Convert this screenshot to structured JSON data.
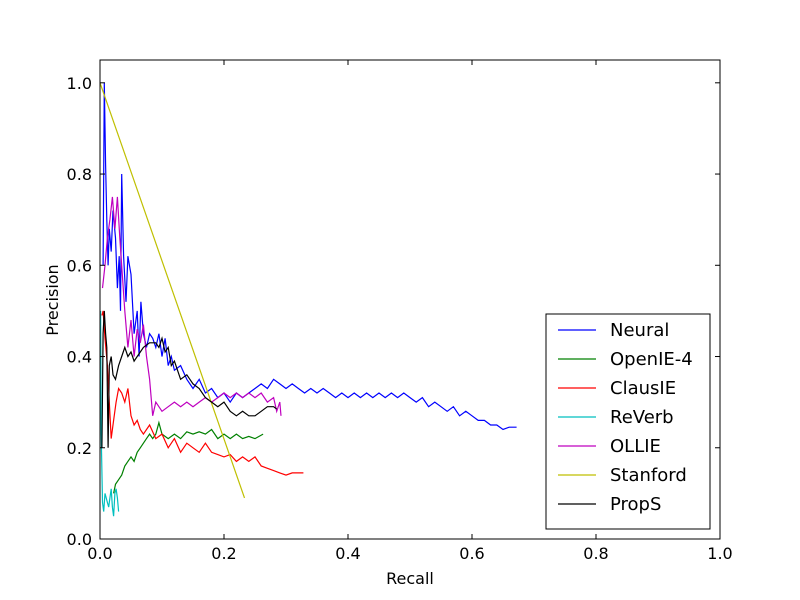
{
  "chart_data": {
    "type": "line",
    "title": "",
    "xlabel": "Recall",
    "ylabel": "Precision",
    "xlim": [
      0.0,
      1.0
    ],
    "ylim": [
      0.0,
      1.05
    ],
    "xticks": [
      "0.0",
      "0.2",
      "0.4",
      "0.6",
      "0.8",
      "1.0"
    ],
    "yticks": [
      "0.0",
      "0.2",
      "0.4",
      "0.6",
      "0.8",
      "1.0"
    ],
    "grid": false,
    "legend_position": "bottom-right",
    "series": [
      {
        "name": "Neural",
        "color": "#0000ff",
        "points": [
          [
            0.005,
            0.6
          ],
          [
            0.007,
            1.0
          ],
          [
            0.009,
            0.82
          ],
          [
            0.011,
            0.7
          ],
          [
            0.013,
            0.6
          ],
          [
            0.015,
            0.68
          ],
          [
            0.018,
            0.63
          ],
          [
            0.021,
            0.72
          ],
          [
            0.025,
            0.66
          ],
          [
            0.028,
            0.55
          ],
          [
            0.031,
            0.62
          ],
          [
            0.033,
            0.5
          ],
          [
            0.035,
            0.8
          ],
          [
            0.038,
            0.62
          ],
          [
            0.042,
            0.52
          ],
          [
            0.045,
            0.62
          ],
          [
            0.05,
            0.58
          ],
          [
            0.055,
            0.45
          ],
          [
            0.06,
            0.5
          ],
          [
            0.063,
            0.4
          ],
          [
            0.066,
            0.52
          ],
          [
            0.07,
            0.45
          ],
          [
            0.075,
            0.42
          ],
          [
            0.08,
            0.45
          ],
          [
            0.085,
            0.44
          ],
          [
            0.09,
            0.42
          ],
          [
            0.095,
            0.45
          ],
          [
            0.1,
            0.4
          ],
          [
            0.105,
            0.44
          ],
          [
            0.11,
            0.38
          ],
          [
            0.115,
            0.4
          ],
          [
            0.12,
            0.37
          ],
          [
            0.13,
            0.38
          ],
          [
            0.14,
            0.35
          ],
          [
            0.15,
            0.33
          ],
          [
            0.16,
            0.35
          ],
          [
            0.17,
            0.32
          ],
          [
            0.18,
            0.33
          ],
          [
            0.19,
            0.31
          ],
          [
            0.2,
            0.32
          ],
          [
            0.21,
            0.3
          ],
          [
            0.22,
            0.32
          ],
          [
            0.23,
            0.31
          ],
          [
            0.24,
            0.32
          ],
          [
            0.25,
            0.33
          ],
          [
            0.26,
            0.34
          ],
          [
            0.27,
            0.33
          ],
          [
            0.28,
            0.35
          ],
          [
            0.29,
            0.34
          ],
          [
            0.3,
            0.33
          ],
          [
            0.31,
            0.34
          ],
          [
            0.32,
            0.33
          ],
          [
            0.33,
            0.32
          ],
          [
            0.34,
            0.33
          ],
          [
            0.35,
            0.32
          ],
          [
            0.36,
            0.33
          ],
          [
            0.37,
            0.32
          ],
          [
            0.38,
            0.31
          ],
          [
            0.39,
            0.32
          ],
          [
            0.4,
            0.31
          ],
          [
            0.41,
            0.32
          ],
          [
            0.42,
            0.31
          ],
          [
            0.43,
            0.32
          ],
          [
            0.44,
            0.31
          ],
          [
            0.45,
            0.32
          ],
          [
            0.46,
            0.31
          ],
          [
            0.47,
            0.32
          ],
          [
            0.48,
            0.31
          ],
          [
            0.49,
            0.32
          ],
          [
            0.5,
            0.31
          ],
          [
            0.51,
            0.3
          ],
          [
            0.52,
            0.31
          ],
          [
            0.53,
            0.29
          ],
          [
            0.54,
            0.3
          ],
          [
            0.55,
            0.29
          ],
          [
            0.56,
            0.28
          ],
          [
            0.57,
            0.29
          ],
          [
            0.58,
            0.27
          ],
          [
            0.59,
            0.28
          ],
          [
            0.6,
            0.27
          ],
          [
            0.61,
            0.26
          ],
          [
            0.62,
            0.26
          ],
          [
            0.63,
            0.25
          ],
          [
            0.64,
            0.25
          ],
          [
            0.65,
            0.24
          ],
          [
            0.66,
            0.245
          ],
          [
            0.672,
            0.245
          ]
        ]
      },
      {
        "name": "OpenIE-4",
        "color": "#008000",
        "points": [
          [
            0.022,
            0.1
          ],
          [
            0.025,
            0.12
          ],
          [
            0.03,
            0.13
          ],
          [
            0.035,
            0.14
          ],
          [
            0.04,
            0.16
          ],
          [
            0.045,
            0.17
          ],
          [
            0.05,
            0.18
          ],
          [
            0.055,
            0.17
          ],
          [
            0.06,
            0.19
          ],
          [
            0.065,
            0.2
          ],
          [
            0.07,
            0.21
          ],
          [
            0.075,
            0.22
          ],
          [
            0.08,
            0.23
          ],
          [
            0.085,
            0.22
          ],
          [
            0.09,
            0.23
          ],
          [
            0.095,
            0.255
          ],
          [
            0.1,
            0.23
          ],
          [
            0.11,
            0.22
          ],
          [
            0.12,
            0.23
          ],
          [
            0.13,
            0.22
          ],
          [
            0.14,
            0.235
          ],
          [
            0.15,
            0.23
          ],
          [
            0.16,
            0.235
          ],
          [
            0.17,
            0.23
          ],
          [
            0.18,
            0.24
          ],
          [
            0.19,
            0.22
          ],
          [
            0.2,
            0.23
          ],
          [
            0.21,
            0.22
          ],
          [
            0.22,
            0.23
          ],
          [
            0.23,
            0.22
          ],
          [
            0.24,
            0.225
          ],
          [
            0.25,
            0.22
          ],
          [
            0.263,
            0.23
          ]
        ]
      },
      {
        "name": "ClausIE",
        "color": "#ff0000",
        "points": [
          [
            0.003,
            0.49
          ],
          [
            0.005,
            0.5
          ],
          [
            0.008,
            0.44
          ],
          [
            0.012,
            0.38
          ],
          [
            0.015,
            0.3
          ],
          [
            0.018,
            0.22
          ],
          [
            0.022,
            0.26
          ],
          [
            0.026,
            0.3
          ],
          [
            0.03,
            0.33
          ],
          [
            0.035,
            0.32
          ],
          [
            0.04,
            0.3
          ],
          [
            0.045,
            0.33
          ],
          [
            0.05,
            0.27
          ],
          [
            0.055,
            0.25
          ],
          [
            0.06,
            0.26
          ],
          [
            0.065,
            0.24
          ],
          [
            0.07,
            0.23
          ],
          [
            0.08,
            0.25
          ],
          [
            0.09,
            0.22
          ],
          [
            0.1,
            0.23
          ],
          [
            0.11,
            0.2
          ],
          [
            0.12,
            0.22
          ],
          [
            0.13,
            0.19
          ],
          [
            0.14,
            0.21
          ],
          [
            0.15,
            0.2
          ],
          [
            0.16,
            0.19
          ],
          [
            0.17,
            0.21
          ],
          [
            0.18,
            0.19
          ],
          [
            0.19,
            0.185
          ],
          [
            0.2,
            0.18
          ],
          [
            0.21,
            0.185
          ],
          [
            0.22,
            0.17
          ],
          [
            0.23,
            0.18
          ],
          [
            0.24,
            0.17
          ],
          [
            0.25,
            0.18
          ],
          [
            0.26,
            0.16
          ],
          [
            0.27,
            0.155
          ],
          [
            0.28,
            0.15
          ],
          [
            0.29,
            0.145
          ],
          [
            0.3,
            0.14
          ],
          [
            0.31,
            0.145
          ],
          [
            0.328,
            0.145
          ]
        ]
      },
      {
        "name": "ReVerb",
        "color": "#00bfbf",
        "points": [
          [
            0.001,
            0.5
          ],
          [
            0.002,
            0.23
          ],
          [
            0.004,
            0.08
          ],
          [
            0.006,
            0.06
          ],
          [
            0.008,
            0.1
          ],
          [
            0.01,
            0.09
          ],
          [
            0.012,
            0.08
          ],
          [
            0.014,
            0.07
          ],
          [
            0.016,
            0.09
          ],
          [
            0.018,
            0.11
          ],
          [
            0.02,
            0.07
          ],
          [
            0.022,
            0.05
          ],
          [
            0.024,
            0.1
          ],
          [
            0.026,
            0.11
          ],
          [
            0.028,
            0.09
          ],
          [
            0.03,
            0.06
          ]
        ]
      },
      {
        "name": "OLLIE",
        "color": "#bf00bf",
        "points": [
          [
            0.004,
            0.55
          ],
          [
            0.008,
            0.6
          ],
          [
            0.012,
            0.66
          ],
          [
            0.016,
            0.7
          ],
          [
            0.02,
            0.75
          ],
          [
            0.024,
            0.68
          ],
          [
            0.028,
            0.75
          ],
          [
            0.032,
            0.66
          ],
          [
            0.036,
            0.58
          ],
          [
            0.04,
            0.5
          ],
          [
            0.045,
            0.42
          ],
          [
            0.05,
            0.48
          ],
          [
            0.055,
            0.4
          ],
          [
            0.06,
            0.46
          ],
          [
            0.065,
            0.43
          ],
          [
            0.07,
            0.47
          ],
          [
            0.075,
            0.4
          ],
          [
            0.08,
            0.35
          ],
          [
            0.085,
            0.27
          ],
          [
            0.09,
            0.3
          ],
          [
            0.1,
            0.28
          ],
          [
            0.11,
            0.29
          ],
          [
            0.12,
            0.3
          ],
          [
            0.13,
            0.29
          ],
          [
            0.14,
            0.3
          ],
          [
            0.15,
            0.29
          ],
          [
            0.16,
            0.3
          ],
          [
            0.17,
            0.31
          ],
          [
            0.18,
            0.3
          ],
          [
            0.19,
            0.31
          ],
          [
            0.2,
            0.32
          ],
          [
            0.21,
            0.31
          ],
          [
            0.22,
            0.32
          ],
          [
            0.23,
            0.31
          ],
          [
            0.24,
            0.32
          ],
          [
            0.25,
            0.31
          ],
          [
            0.26,
            0.32
          ],
          [
            0.27,
            0.3
          ],
          [
            0.28,
            0.31
          ],
          [
            0.285,
            0.28
          ],
          [
            0.29,
            0.3
          ],
          [
            0.292,
            0.27
          ]
        ]
      },
      {
        "name": "Stanford",
        "color": "#bfbf00",
        "points": [
          [
            0.0,
            1.0
          ],
          [
            0.233,
            0.09
          ]
        ]
      },
      {
        "name": "PropS",
        "color": "#000000",
        "points": [
          [
            0.003,
            0.2
          ],
          [
            0.005,
            0.45
          ],
          [
            0.007,
            0.5
          ],
          [
            0.009,
            0.45
          ],
          [
            0.011,
            0.42
          ],
          [
            0.013,
            0.2
          ],
          [
            0.015,
            0.38
          ],
          [
            0.018,
            0.4
          ],
          [
            0.021,
            0.36
          ],
          [
            0.025,
            0.35
          ],
          [
            0.03,
            0.38
          ],
          [
            0.035,
            0.4
          ],
          [
            0.04,
            0.42
          ],
          [
            0.045,
            0.4
          ],
          [
            0.05,
            0.41
          ],
          [
            0.055,
            0.39
          ],
          [
            0.06,
            0.4
          ],
          [
            0.065,
            0.41
          ],
          [
            0.07,
            0.42
          ],
          [
            0.08,
            0.43
          ],
          [
            0.09,
            0.43
          ],
          [
            0.095,
            0.42
          ],
          [
            0.1,
            0.44
          ],
          [
            0.105,
            0.41
          ],
          [
            0.11,
            0.42
          ],
          [
            0.115,
            0.38
          ],
          [
            0.12,
            0.39
          ],
          [
            0.13,
            0.35
          ],
          [
            0.14,
            0.36
          ],
          [
            0.15,
            0.34
          ],
          [
            0.16,
            0.33
          ],
          [
            0.17,
            0.31
          ],
          [
            0.18,
            0.3
          ],
          [
            0.19,
            0.29
          ],
          [
            0.2,
            0.3
          ],
          [
            0.21,
            0.28
          ],
          [
            0.22,
            0.27
          ],
          [
            0.23,
            0.28
          ],
          [
            0.24,
            0.27
          ],
          [
            0.25,
            0.27
          ],
          [
            0.26,
            0.28
          ],
          [
            0.27,
            0.29
          ],
          [
            0.28,
            0.29
          ],
          [
            0.285,
            0.285
          ]
        ]
      }
    ]
  }
}
